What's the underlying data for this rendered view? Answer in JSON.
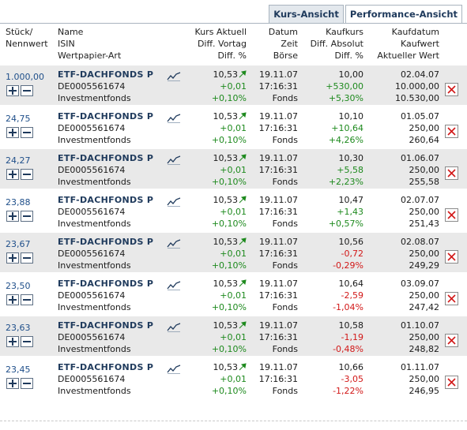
{
  "tabs": {
    "kurs": "Kurs-Ansicht",
    "performance": "Performance-Ansicht"
  },
  "header": {
    "stueck": "Stück/",
    "nennwert": "Nennwert",
    "name": "Name",
    "isin": "ISIN",
    "wp_art": "Wertpapier-Art",
    "kurs_aktuell": "Kurs Aktuell",
    "diff_vortag": "Diff. Vortag",
    "diff_pct": "Diff. %",
    "datum": "Datum",
    "zeit": "Zeit",
    "boerse": "Börse",
    "kaufkurs": "Kaufkurs",
    "diff_absolut": "Diff. Absolut",
    "diff_pct2": "Diff. %",
    "kaufdatum": "Kaufdatum",
    "kaufwert": "Kaufwert",
    "aktueller_wert": "Aktueller Wert"
  },
  "colors": {
    "positive": "#1e8a1e",
    "negative": "#d21818",
    "link": "#1f3a5c",
    "row_shade": "#e9e9e9"
  },
  "rows": [
    {
      "qty": "1.000,00",
      "name": "ETF-DACHFONDS P",
      "isin": "DE0005561674",
      "type": "Investmentfonds",
      "kurs": "10,53",
      "diff_vortag": "+0,01",
      "diff_pct": "+0,10%",
      "datum": "19.11.07",
      "zeit": "17:16:31",
      "boerse": "Fonds",
      "kaufkurs": "10,00",
      "diff_abs": "+530,00",
      "diff_abs_pct": "+5,30%",
      "kaufdatum": "02.04.07",
      "kaufwert": "10.000,00",
      "aktueller_wert": "10.530,00",
      "trend": "pos"
    },
    {
      "qty": "24,75",
      "name": "ETF-DACHFONDS P",
      "isin": "DE0005561674",
      "type": "Investmentfonds",
      "kurs": "10,53",
      "diff_vortag": "+0,01",
      "diff_pct": "+0,10%",
      "datum": "19.11.07",
      "zeit": "17:16:31",
      "boerse": "Fonds",
      "kaufkurs": "10,10",
      "diff_abs": "+10,64",
      "diff_abs_pct": "+4,26%",
      "kaufdatum": "01.05.07",
      "kaufwert": "250,00",
      "aktueller_wert": "260,64",
      "trend": "pos"
    },
    {
      "qty": "24,27",
      "name": "ETF-DACHFONDS P",
      "isin": "DE0005561674",
      "type": "Investmentfonds",
      "kurs": "10,53",
      "diff_vortag": "+0,01",
      "diff_pct": "+0,10%",
      "datum": "19.11.07",
      "zeit": "17:16:31",
      "boerse": "Fonds",
      "kaufkurs": "10,30",
      "diff_abs": "+5,58",
      "diff_abs_pct": "+2,23%",
      "kaufdatum": "01.06.07",
      "kaufwert": "250,00",
      "aktueller_wert": "255,58",
      "trend": "pos"
    },
    {
      "qty": "23,88",
      "name": "ETF-DACHFONDS P",
      "isin": "DE0005561674",
      "type": "Investmentfonds",
      "kurs": "10,53",
      "diff_vortag": "+0,01",
      "diff_pct": "+0,10%",
      "datum": "19.11.07",
      "zeit": "17:16:31",
      "boerse": "Fonds",
      "kaufkurs": "10,47",
      "diff_abs": "+1,43",
      "diff_abs_pct": "+0,57%",
      "kaufdatum": "02.07.07",
      "kaufwert": "250,00",
      "aktueller_wert": "251,43",
      "trend": "pos"
    },
    {
      "qty": "23,67",
      "name": "ETF-DACHFONDS P",
      "isin": "DE0005561674",
      "type": "Investmentfonds",
      "kurs": "10,53",
      "diff_vortag": "+0,01",
      "diff_pct": "+0,10%",
      "datum": "19.11.07",
      "zeit": "17:16:31",
      "boerse": "Fonds",
      "kaufkurs": "10,56",
      "diff_abs": "-0,72",
      "diff_abs_pct": "-0,29%",
      "kaufdatum": "02.08.07",
      "kaufwert": "250,00",
      "aktueller_wert": "249,29",
      "trend": "neg"
    },
    {
      "qty": "23,50",
      "name": "ETF-DACHFONDS P",
      "isin": "DE0005561674",
      "type": "Investmentfonds",
      "kurs": "10,53",
      "diff_vortag": "+0,01",
      "diff_pct": "+0,10%",
      "datum": "19.11.07",
      "zeit": "17:16:31",
      "boerse": "Fonds",
      "kaufkurs": "10,64",
      "diff_abs": "-2,59",
      "diff_abs_pct": "-1,04%",
      "kaufdatum": "03.09.07",
      "kaufwert": "250,00",
      "aktueller_wert": "247,42",
      "trend": "neg"
    },
    {
      "qty": "23,63",
      "name": "ETF-DACHFONDS P",
      "isin": "DE0005561674",
      "type": "Investmentfonds",
      "kurs": "10,53",
      "diff_vortag": "+0,01",
      "diff_pct": "+0,10%",
      "datum": "19.11.07",
      "zeit": "17:16:31",
      "boerse": "Fonds",
      "kaufkurs": "10,58",
      "diff_abs": "-1,19",
      "diff_abs_pct": "-0,48%",
      "kaufdatum": "01.10.07",
      "kaufwert": "250,00",
      "aktueller_wert": "248,82",
      "trend": "neg"
    },
    {
      "qty": "23,45",
      "name": "ETF-DACHFONDS P",
      "isin": "DE0005561674",
      "type": "Investmentfonds",
      "kurs": "10,53",
      "diff_vortag": "+0,01",
      "diff_pct": "+0,10%",
      "datum": "19.11.07",
      "zeit": "17:16:31",
      "boerse": "Fonds",
      "kaufkurs": "10,66",
      "diff_abs": "-3,05",
      "diff_abs_pct": "-1,22%",
      "kaufdatum": "01.11.07",
      "kaufwert": "250,00",
      "aktueller_wert": "246,95",
      "trend": "neg"
    }
  ]
}
